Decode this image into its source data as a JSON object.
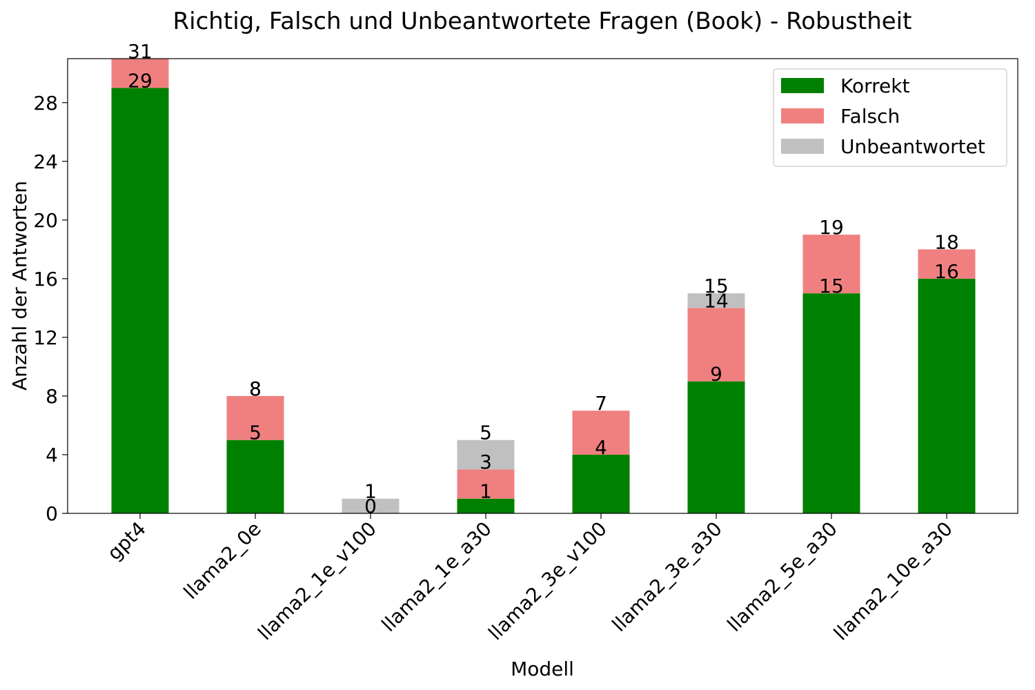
{
  "chart_data": {
    "type": "bar",
    "stacked": true,
    "title": "Richtig, Falsch und Unbeantwortete Fragen (Book) - Robustheit",
    "xlabel": "Modell",
    "ylabel": "Anzahl der Antworten",
    "categories": [
      "gpt4",
      "llama2_0e",
      "llama2_1e_v100",
      "llama2_1e_a30",
      "llama2_3e_v100",
      "llama2_3e_a30",
      "llama2_5e_a30",
      "llama2_10e_a30"
    ],
    "series": [
      {
        "name": "Korrekt",
        "color": "#008000",
        "values": [
          29,
          5,
          0,
          1,
          4,
          9,
          15,
          16
        ]
      },
      {
        "name": "Falsch",
        "color": "#f08080",
        "values": [
          2,
          3,
          0,
          2,
          3,
          5,
          4,
          2
        ]
      },
      {
        "name": "Unbeantwortet",
        "color": "#c0c0c0",
        "values": [
          0,
          0,
          1,
          2,
          0,
          1,
          0,
          0
        ]
      }
    ],
    "bar_labels": {
      "correct_tops": [
        29,
        5,
        0,
        1,
        4,
        9,
        15,
        16
      ],
      "answered_tops": [
        31,
        8,
        0,
        3,
        7,
        14,
        19,
        18
      ],
      "totals": [
        31,
        8,
        1,
        5,
        7,
        15,
        19,
        18
      ],
      "answered_shown": [
        false,
        true,
        false,
        true,
        false,
        true,
        false,
        false
      ]
    },
    "ylim": [
      0,
      31
    ],
    "yticks": [
      0,
      4,
      8,
      12,
      16,
      20,
      24,
      28
    ],
    "grid": false,
    "legend_position": "top-right"
  }
}
